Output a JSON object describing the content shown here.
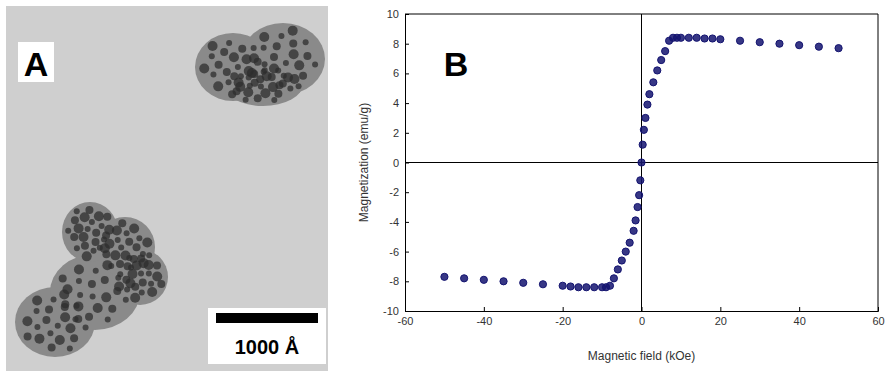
{
  "panels": [
    {
      "label": "A",
      "scale_bar": "1000 Å"
    },
    {
      "label": "B"
    }
  ],
  "chart_data": {
    "type": "scatter",
    "x_label": "Magnetic field (kOe)",
    "y_label": "Magnetization (emu/g)",
    "x": [
      -50,
      -45,
      -40,
      -35,
      -30,
      -25,
      -20,
      -18,
      -16,
      -14,
      -12,
      -10,
      -9,
      -8,
      -7,
      -6,
      -5,
      -4,
      -3,
      -2,
      -1.5,
      -1,
      -0.6,
      -0.3,
      0,
      0.3,
      0.6,
      1,
      1.5,
      2,
      3,
      4,
      5,
      6,
      7,
      8,
      9,
      10,
      12,
      14,
      16,
      18,
      20,
      25,
      30,
      35,
      40,
      45,
      50
    ],
    "values": [
      -7.7,
      -7.8,
      -7.9,
      -8.0,
      -8.1,
      -8.2,
      -8.3,
      -8.35,
      -8.4,
      -8.4,
      -8.4,
      -8.4,
      -8.4,
      -8.3,
      -7.8,
      -7.2,
      -6.6,
      -6.0,
      -5.4,
      -4.6,
      -3.9,
      -3.0,
      -2.2,
      -1.2,
      0,
      1.2,
      2.2,
      3.0,
      3.9,
      4.6,
      5.4,
      6.2,
      6.9,
      7.5,
      8.2,
      8.4,
      8.4,
      8.4,
      8.4,
      8.4,
      8.35,
      8.35,
      8.3,
      8.2,
      8.1,
      8.0,
      7.9,
      7.8,
      7.7
    ],
    "color": "#141470",
    "marker": "circle",
    "xlim": [
      -60,
      60
    ],
    "ylim": [
      -10,
      10
    ],
    "xticks": [
      -60,
      -40,
      -20,
      0,
      20,
      40,
      60
    ],
    "yticks": [
      -10,
      -8,
      -6,
      -4,
      -2,
      0,
      2,
      4,
      6,
      8,
      10
    ],
    "grid": false
  }
}
